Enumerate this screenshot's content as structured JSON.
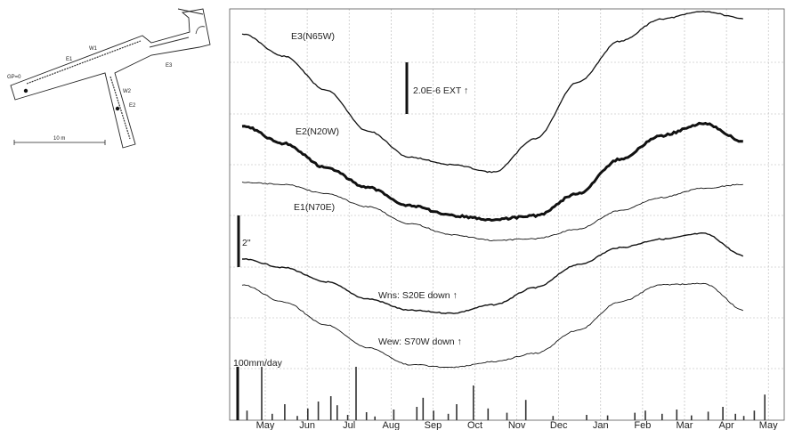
{
  "schematic": {
    "labels": [
      "W1",
      "E1",
      "E3",
      "W2",
      "E2",
      "GP=0"
    ],
    "scale_label": "10 m"
  },
  "chart_data": {
    "type": "line",
    "title": "",
    "xlabel": "",
    "ylabel": "",
    "months": [
      "May",
      "Jun",
      "Jul",
      "Aug",
      "Sep",
      "Oct",
      "Nov",
      "Dec",
      "Jan",
      "Feb",
      "Mar",
      "Apr",
      "May"
    ],
    "grid": true,
    "annotations": {
      "strain_scale": "2.0E-6  EXT ↑",
      "tilt_scale": "2\"",
      "rain_scale": "100mm/day"
    },
    "series": [
      {
        "name": "E3(N65W)",
        "unit": "strain",
        "relative_values": [
          0.0,
          -0.6,
          -1.5,
          -2.6,
          -3.3,
          -3.5,
          -3.7,
          -2.8,
          -1.3,
          -0.2,
          0.4,
          0.6,
          0.4
        ],
        "style": "medium"
      },
      {
        "name": "E2(N20W)",
        "unit": "strain",
        "relative_values": [
          0.0,
          -0.45,
          -1.05,
          -1.55,
          -2.0,
          -2.25,
          -2.35,
          -2.25,
          -1.7,
          -0.85,
          -0.25,
          0.05,
          -0.4
        ],
        "style": "bold"
      },
      {
        "name": "E1(N70E)",
        "unit": "strain",
        "relative_values": [
          0.0,
          -0.05,
          -0.3,
          -0.65,
          -1.1,
          -1.4,
          -1.55,
          -1.5,
          -1.25,
          -0.75,
          -0.4,
          -0.15,
          -0.05
        ],
        "style": "thin"
      },
      {
        "name": "Wns: S20E down ↑",
        "unit": "arcsec",
        "relative_values": [
          0.0,
          -0.3,
          -0.8,
          -1.4,
          -1.8,
          -1.9,
          -1.6,
          -1.0,
          -0.2,
          0.4,
          0.7,
          0.9,
          0.1
        ],
        "style": "medium"
      },
      {
        "name": "Wew: S70W down ↑",
        "unit": "arcsec",
        "relative_values": [
          0.0,
          -0.6,
          -1.4,
          -2.2,
          -2.8,
          -2.9,
          -2.7,
          -2.4,
          -1.6,
          -0.6,
          0.0,
          0.05,
          -0.9
        ],
        "style": "thin"
      }
    ],
    "precipitation": {
      "name": "precipitation",
      "unit": "mm/day",
      "events": [
        {
          "month": 0.1,
          "mm": 18
        },
        {
          "month": 0.45,
          "mm": 100
        },
        {
          "month": 0.7,
          "mm": 12
        },
        {
          "month": 1.0,
          "mm": 30
        },
        {
          "month": 1.3,
          "mm": 8
        },
        {
          "month": 1.55,
          "mm": 22
        },
        {
          "month": 1.8,
          "mm": 35
        },
        {
          "month": 2.1,
          "mm": 45
        },
        {
          "month": 2.25,
          "mm": 28
        },
        {
          "month": 2.5,
          "mm": 10
        },
        {
          "month": 2.7,
          "mm": 100
        },
        {
          "month": 2.95,
          "mm": 15
        },
        {
          "month": 3.15,
          "mm": 7
        },
        {
          "month": 3.6,
          "mm": 20
        },
        {
          "month": 4.15,
          "mm": 25
        },
        {
          "month": 4.3,
          "mm": 42
        },
        {
          "month": 4.55,
          "mm": 18
        },
        {
          "month": 4.9,
          "mm": 12
        },
        {
          "month": 5.1,
          "mm": 30
        },
        {
          "month": 5.5,
          "mm": 65
        },
        {
          "month": 5.85,
          "mm": 22
        },
        {
          "month": 6.3,
          "mm": 14
        },
        {
          "month": 6.75,
          "mm": 38
        },
        {
          "month": 7.4,
          "mm": 8
        },
        {
          "month": 8.2,
          "mm": 10
        },
        {
          "month": 8.7,
          "mm": 9
        },
        {
          "month": 9.35,
          "mm": 14
        },
        {
          "month": 9.6,
          "mm": 18
        },
        {
          "month": 10.0,
          "mm": 12
        },
        {
          "month": 10.35,
          "mm": 20
        },
        {
          "month": 10.7,
          "mm": 9
        },
        {
          "month": 11.1,
          "mm": 16
        },
        {
          "month": 11.45,
          "mm": 25
        },
        {
          "month": 11.75,
          "mm": 12
        },
        {
          "month": 11.95,
          "mm": 8
        },
        {
          "month": 12.2,
          "mm": 18
        },
        {
          "month": 12.45,
          "mm": 48
        }
      ]
    }
  }
}
